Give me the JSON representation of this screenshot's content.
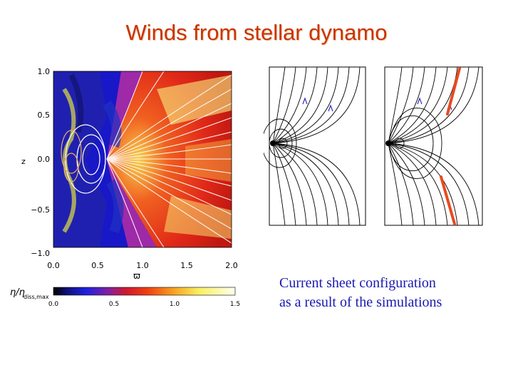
{
  "slide": {
    "title": "Winds from stellar dynamo",
    "caption_lines": [
      "Current sheet configuration",
      "as a result of the simulations"
    ]
  },
  "simulation_plot": {
    "y_axis_label": "z",
    "x_axis_label": "ϖ",
    "y_ticks": [
      "1.0",
      "0.5",
      "0.0",
      "−0.5",
      "−1.0"
    ],
    "x_ticks": [
      "0.0",
      "0.5",
      "1.0",
      "1.5",
      "2.0"
    ],
    "colorbar_label_main": "η/η",
    "colorbar_label_sub": "diss,max",
    "colorbar_ticks": [
      "0.0",
      "0.5",
      "1.0",
      "1.5"
    ],
    "colors": {
      "blue": "#1a1ad0",
      "red": "#e0201a",
      "orange": "#f08a1a",
      "yellow": "#f8f05a"
    }
  },
  "field_line_panels": {
    "count": 2,
    "current_sheet_color": "#e84a20"
  }
}
